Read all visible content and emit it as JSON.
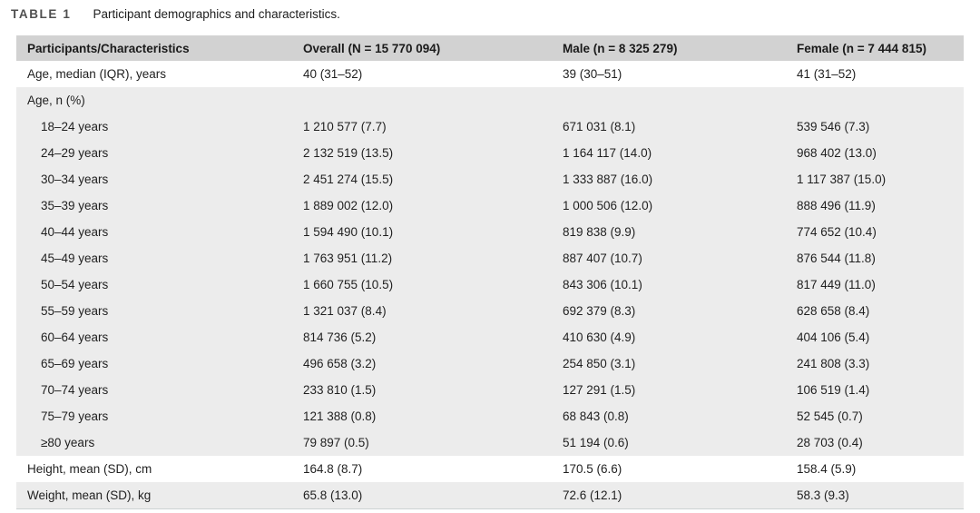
{
  "table": {
    "label": "TABLE 1",
    "caption": "Participant demographics and characteristics.",
    "columns": [
      "Participants/Characteristics",
      "Overall (N = 15 770 094)",
      "Male (n = 8 325 279)",
      "Female (n = 7 444 815)"
    ],
    "rows": [
      {
        "label": "Age, median (IQR), years",
        "indent": false,
        "shaded": false,
        "values": [
          "40 (31–52)",
          "39 (30–51)",
          "41 (31–52)"
        ]
      },
      {
        "label": "Age, n (%)",
        "indent": false,
        "shaded": true,
        "values": [
          "",
          "",
          ""
        ]
      },
      {
        "label": "18–24 years",
        "indent": true,
        "shaded": true,
        "values": [
          "1 210 577 (7.7)",
          "671 031 (8.1)",
          "539 546 (7.3)"
        ]
      },
      {
        "label": "24–29 years",
        "indent": true,
        "shaded": true,
        "values": [
          "2 132 519 (13.5)",
          "1 164 117 (14.0)",
          "968 402 (13.0)"
        ]
      },
      {
        "label": "30–34 years",
        "indent": true,
        "shaded": true,
        "values": [
          "2 451 274 (15.5)",
          "1 333 887 (16.0)",
          "1 117 387 (15.0)"
        ]
      },
      {
        "label": "35–39 years",
        "indent": true,
        "shaded": true,
        "values": [
          "1 889 002 (12.0)",
          "1 000 506 (12.0)",
          "888 496 (11.9)"
        ]
      },
      {
        "label": "40–44 years",
        "indent": true,
        "shaded": true,
        "values": [
          "1 594 490 (10.1)",
          "819 838 (9.9)",
          "774 652 (10.4)"
        ]
      },
      {
        "label": "45–49 years",
        "indent": true,
        "shaded": true,
        "values": [
          "1 763 951 (11.2)",
          "887 407 (10.7)",
          "876 544 (11.8)"
        ]
      },
      {
        "label": "50–54 years",
        "indent": true,
        "shaded": true,
        "values": [
          "1 660 755 (10.5)",
          "843 306 (10.1)",
          "817 449 (11.0)"
        ]
      },
      {
        "label": "55–59 years",
        "indent": true,
        "shaded": true,
        "values": [
          "1 321 037 (8.4)",
          "692 379 (8.3)",
          "628 658 (8.4)"
        ]
      },
      {
        "label": "60–64 years",
        "indent": true,
        "shaded": true,
        "values": [
          "814 736 (5.2)",
          "410 630 (4.9)",
          "404 106 (5.4)"
        ]
      },
      {
        "label": "65–69 years",
        "indent": true,
        "shaded": true,
        "values": [
          "496 658 (3.2)",
          "254 850 (3.1)",
          "241 808 (3.3)"
        ]
      },
      {
        "label": "70–74 years",
        "indent": true,
        "shaded": true,
        "values": [
          "233 810 (1.5)",
          "127 291 (1.5)",
          "106 519 (1.4)"
        ]
      },
      {
        "label": "75–79 years",
        "indent": true,
        "shaded": true,
        "values": [
          "121 388 (0.8)",
          "68 843 (0.8)",
          "52 545 (0.7)"
        ]
      },
      {
        "label": "≥80 years",
        "indent": true,
        "shaded": true,
        "values": [
          "79 897 (0.5)",
          "51 194 (0.6)",
          "28 703 (0.4)"
        ]
      },
      {
        "label": "Height, mean (SD), cm",
        "indent": false,
        "shaded": false,
        "values": [
          "164.8 (8.7)",
          "170.5 (6.6)",
          "158.4 (5.9)"
        ]
      },
      {
        "label": "Weight, mean (SD), kg",
        "indent": false,
        "shaded": true,
        "values": [
          "65.8 (13.0)",
          "72.6 (12.1)",
          "58.3 (9.3)"
        ]
      }
    ],
    "colors": {
      "header_bg": "#d2d2d2",
      "band_bg": "#ececec",
      "header_text": "#1a1a1a",
      "body_text": "#1f1f1f",
      "label_text": "#4f4f4f",
      "caption_text": "#1d1d1d"
    }
  }
}
